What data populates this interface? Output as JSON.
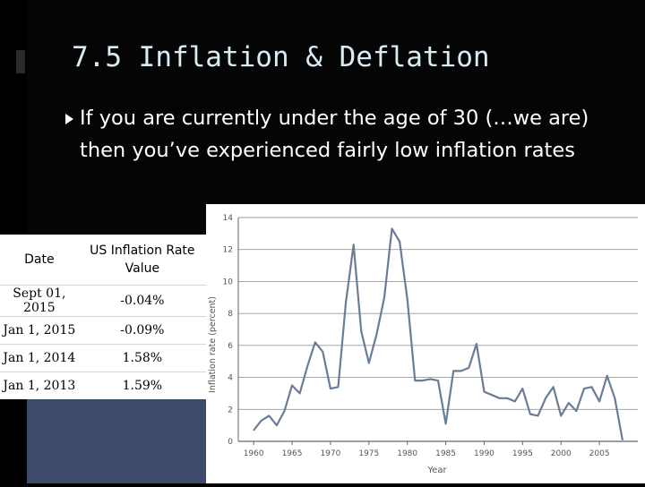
{
  "slide": {
    "title": "7.5 Inflation & Deflation",
    "bullet": "If you are currently under the age of 30 (…we are) then you’ve experienced fairly low inflation rates"
  },
  "table": {
    "headers": [
      "Date",
      "US Inflation Rate Value"
    ],
    "rows": [
      [
        "Sept 01, 2015",
        "-0.04%"
      ],
      [
        "Jan 1, 2015",
        "-0.09%"
      ],
      [
        "Jan 1, 2014",
        "1.58%"
      ],
      [
        "Jan 1, 2013",
        "1.59%"
      ]
    ]
  },
  "chart_data": {
    "type": "line",
    "xlabel": "Year",
    "ylabel": "Inflation rate (percent)",
    "xlim": [
      1958,
      2010
    ],
    "ylim": [
      0,
      14
    ],
    "xticks": [
      1960,
      1965,
      1970,
      1975,
      1980,
      1985,
      1990,
      1995,
      2000,
      2005
    ],
    "yticks": [
      0,
      2,
      4,
      6,
      8,
      10,
      12,
      14
    ],
    "grid": "horizontal",
    "line_color": "#6a7d96",
    "x": [
      1960,
      1961,
      1962,
      1963,
      1964,
      1965,
      1966,
      1967,
      1968,
      1969,
      1970,
      1971,
      1972,
      1973,
      1974,
      1975,
      1976,
      1977,
      1978,
      1979,
      1980,
      1981,
      1982,
      1983,
      1984,
      1985,
      1986,
      1987,
      1988,
      1989,
      1990,
      1991,
      1992,
      1993,
      1994,
      1995,
      1996,
      1997,
      1998,
      1999,
      2000,
      2001,
      2002,
      2003,
      2004,
      2005,
      2006,
      2007,
      2008
    ],
    "values": [
      0.7,
      1.3,
      1.6,
      1.0,
      1.9,
      3.5,
      3.0,
      4.7,
      6.2,
      5.6,
      3.3,
      3.4,
      8.7,
      12.3,
      6.9,
      4.9,
      6.7,
      9.0,
      13.3,
      12.5,
      8.9,
      3.8,
      3.8,
      3.9,
      3.8,
      1.1,
      4.4,
      4.4,
      4.6,
      6.1,
      3.1,
      2.9,
      2.7,
      2.7,
      2.5,
      3.3,
      1.7,
      1.6,
      2.7,
      3.4,
      1.6,
      2.4,
      1.9,
      3.3,
      3.4,
      2.5,
      4.1,
      2.7,
      0.1
    ]
  }
}
